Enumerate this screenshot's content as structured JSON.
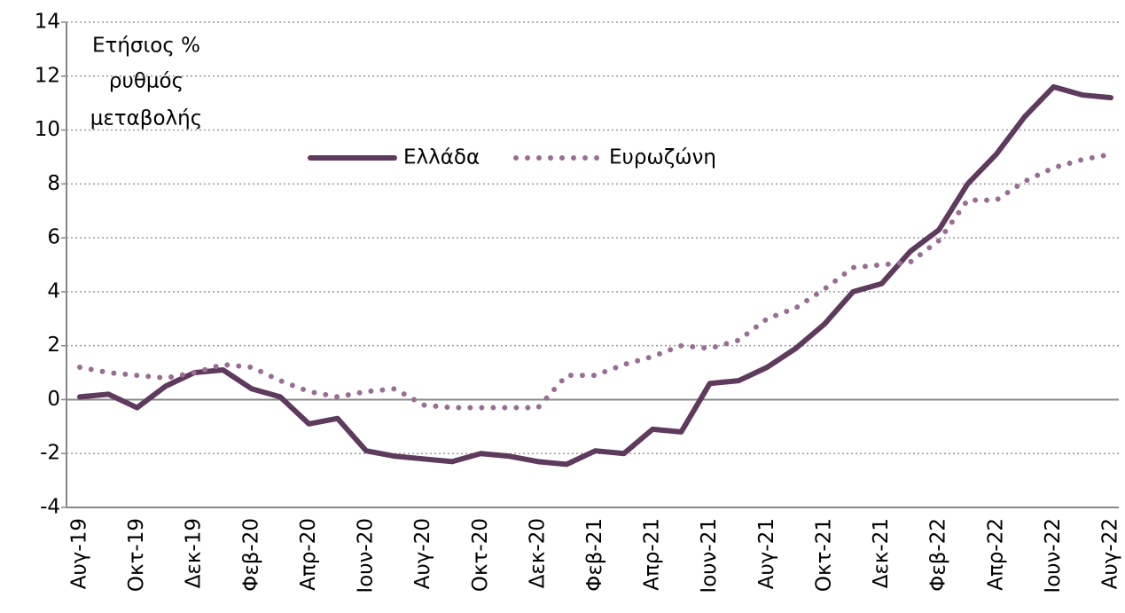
{
  "chart_data": {
    "type": "line",
    "annotation": [
      "Ετήσιος %",
      "ρυθμός",
      "μεταβολής"
    ],
    "categories": [
      "Αυγ-19",
      null,
      "Οκτ-19",
      null,
      "Δεκ-19",
      null,
      "Φεβ-20",
      null,
      "Απρ-20",
      null,
      "Ιουν-20",
      null,
      "Αυγ-20",
      null,
      "Οκτ-20",
      null,
      "Δεκ-20",
      null,
      "Φεβ-21",
      null,
      "Απρ-21",
      null,
      "Ιουν-21",
      null,
      "Αυγ-21",
      null,
      "Οκτ-21",
      null,
      "Δεκ-21",
      null,
      "Φεβ-22",
      null,
      "Απρ-22",
      null,
      "Ιουν-22",
      null,
      "Αυγ-22"
    ],
    "series": [
      {
        "name": "Ελλάδα",
        "color": "#5e3a5c",
        "style": "solid",
        "values": [
          0.1,
          0.2,
          -0.3,
          0.5,
          1.0,
          1.1,
          0.4,
          0.1,
          -0.9,
          -0.7,
          -1.9,
          -2.1,
          -2.2,
          -2.3,
          -2.0,
          -2.1,
          -2.3,
          -2.4,
          -1.9,
          -2.0,
          -1.1,
          -1.2,
          0.6,
          0.7,
          1.2,
          1.9,
          2.8,
          4.0,
          4.3,
          5.5,
          6.3,
          8.0,
          9.1,
          10.5,
          11.6,
          11.3,
          11.2
        ]
      },
      {
        "name": "Ευρωζώνη",
        "color": "#9a6e94",
        "style": "dotted",
        "values": [
          1.2,
          1.0,
          0.9,
          0.8,
          1.0,
          1.3,
          1.2,
          0.7,
          0.3,
          0.1,
          0.3,
          0.4,
          -0.2,
          -0.3,
          -0.3,
          -0.3,
          -0.3,
          0.9,
          0.9,
          1.3,
          1.6,
          2.0,
          1.9,
          2.2,
          3.0,
          3.4,
          4.1,
          4.9,
          5.0,
          5.1,
          5.9,
          7.4,
          7.4,
          8.1,
          8.6,
          8.9,
          9.1
        ]
      }
    ],
    "ylim": [
      -4,
      14
    ],
    "yticks": [
      -4,
      -2,
      0,
      2,
      4,
      6,
      8,
      10,
      12,
      14
    ],
    "grid": true,
    "legend": "top"
  }
}
